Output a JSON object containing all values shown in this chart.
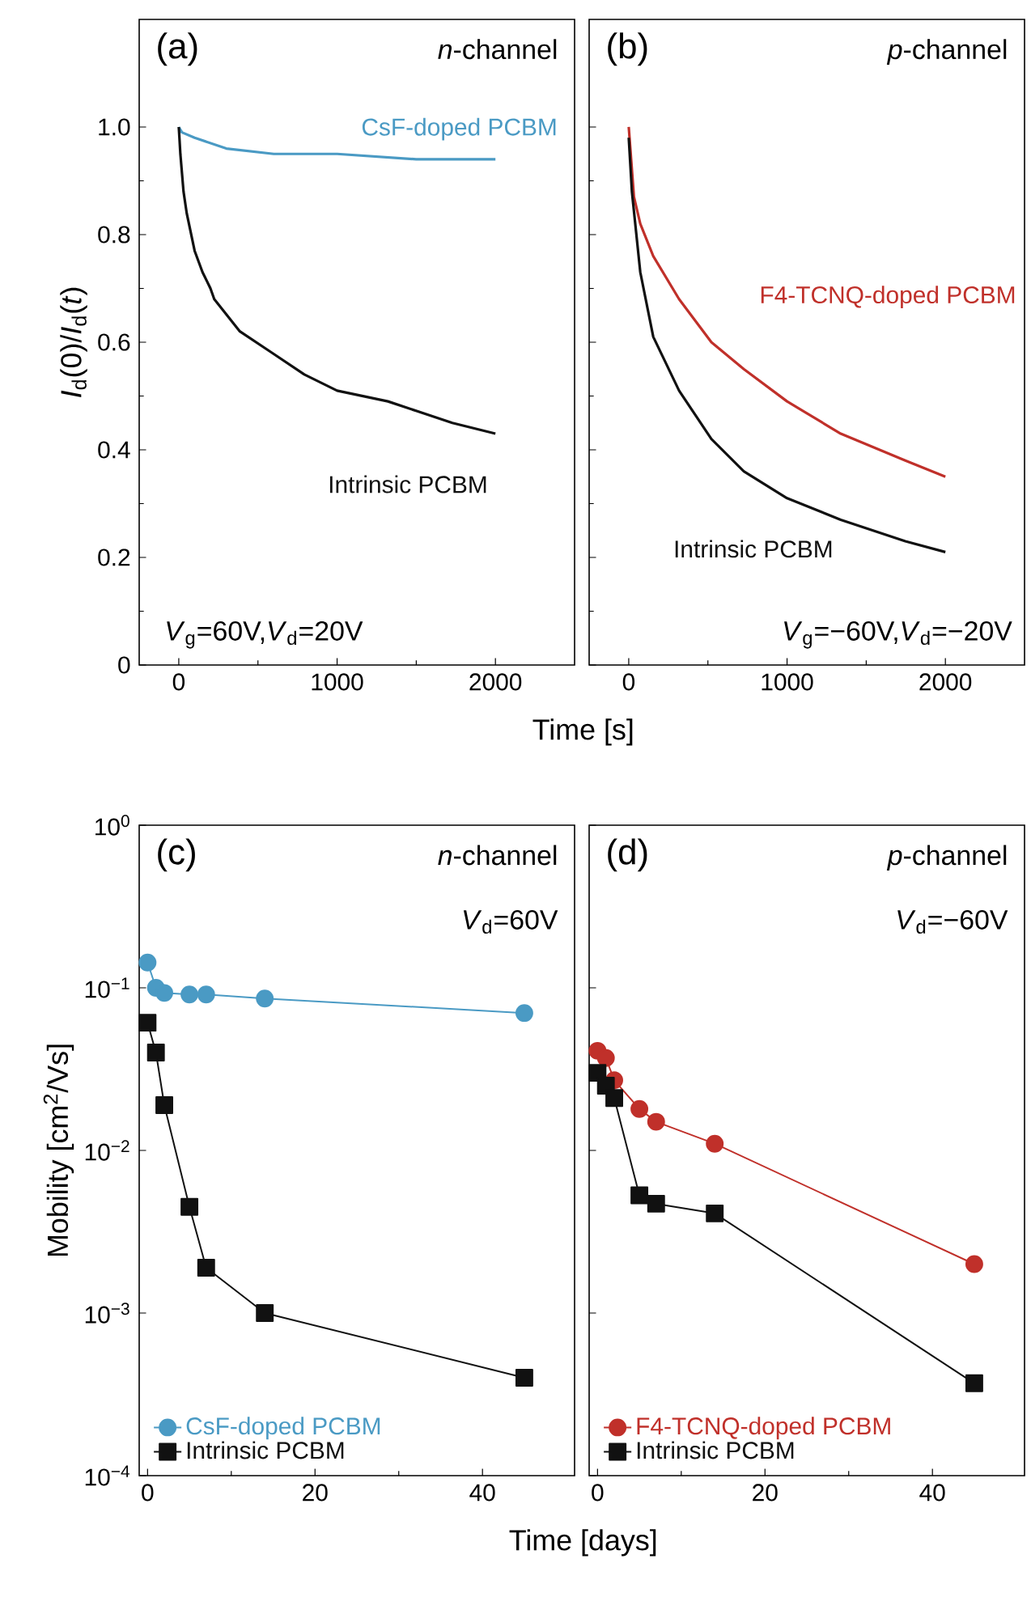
{
  "chart_data": [
    {
      "type": "line",
      "xlabel": "Time [s]",
      "ylabel": "*I*$_{d}$(0)/*I*$_{d}$(*t*)",
      "xlim": [
        -250,
        2500
      ],
      "ylim": [
        0,
        1.2
      ],
      "xticks": [
        0,
        1000,
        2000
      ],
      "yticks": [
        0,
        0.2,
        0.4,
        0.6,
        0.8,
        {
          "value": 1,
          "label": "1.0"
        }
      ],
      "annotations": [
        "(a)",
        "*n*-channel",
        "*V*$_{g}$=60V,*V*$_{d}$=20V"
      ],
      "series": [
        {
          "name": "CsF-doped PCBM",
          "color": "#4a9ac4",
          "x": [
            0,
            20,
            100,
            300,
            600,
            1000,
            1500,
            2000
          ],
          "values": [
            1.0,
            0.99,
            0.98,
            0.96,
            0.95,
            0.95,
            0.94,
            0.94
          ]
        },
        {
          "name": "Intrinsic PCBM",
          "color": "#111111",
          "x": [
            0,
            10,
            30,
            50,
            100,
            150,
            200,
            224,
            386,
            590,
            793,
            1000,
            1321,
            1728,
            2000
          ],
          "values": [
            1.0,
            0.95,
            0.88,
            0.84,
            0.77,
            0.73,
            0.7,
            0.68,
            0.62,
            0.58,
            0.54,
            0.51,
            0.49,
            0.45,
            0.43
          ]
        }
      ]
    },
    {
      "type": "line",
      "xlim": [
        -250,
        2500
      ],
      "ylim": [
        0,
        1.2
      ],
      "xticks": [
        0,
        1000,
        2000
      ],
      "yticks": [
        0,
        0.2,
        0.4,
        0.6,
        0.8,
        1
      ],
      "tick_labels": "x",
      "annotations": [
        "(b)",
        "*p*-channel",
        "*V*$_{g}$=−60V,*V*$_{d}$=−20V"
      ],
      "series": [
        {
          "name": "F4-TCNQ-doped PCBM",
          "color": "#c0302a",
          "x": [
            0,
            33,
            73,
            155,
            318,
            522,
            727,
            1000,
            1339,
            1747,
            2000
          ],
          "values": [
            1.0,
            0.87,
            0.82,
            0.76,
            0.68,
            0.6,
            0.55,
            0.49,
            0.43,
            0.38,
            0.35
          ]
        },
        {
          "name": "Intrinsic PCBM",
          "color": "#111111",
          "x": [
            0,
            20,
            73,
            155,
            318,
            522,
            727,
            1000,
            1339,
            1747,
            2000
          ],
          "values": [
            0.98,
            0.88,
            0.73,
            0.61,
            0.51,
            0.42,
            0.36,
            0.31,
            0.27,
            0.23,
            0.21
          ]
        }
      ]
    },
    {
      "type": "line",
      "log": "y",
      "xlabel": "Time [days]",
      "ylabel": "Mobility  [cm$^{2}$/Vs]",
      "xlim": [
        -1,
        51
      ],
      "ylim": [
        0.0001,
        1
      ],
      "xticks": [
        0,
        20,
        40
      ],
      "yticks": [
        {
          "value": 0.0001,
          "label": "10$^{−4}$"
        },
        {
          "value": 0.001,
          "label": "10$^{−3}$"
        },
        {
          "value": 0.01,
          "label": "10$^{−2}$"
        },
        {
          "value": 0.1,
          "label": "10$^{−1}$"
        },
        {
          "value": 1,
          "label": "10$^{0}$"
        }
      ],
      "legend": "bottom left",
      "line_style": "solid",
      "annotations": [
        "(c)",
        "*n*-channel",
        "*V*$_{d}$=60V"
      ],
      "series": [
        {
          "name": "CsF-doped PCBM",
          "color": "#4a9ac4",
          "marker": "circle",
          "x": [
            0,
            1,
            2,
            5,
            7,
            14,
            45
          ],
          "values": [
            0.143,
            0.1,
            0.093,
            0.091,
            0.091,
            0.086,
            0.07
          ]
        },
        {
          "name": "Intrinsic PCBM",
          "color": "#111111",
          "marker": "square",
          "x": [
            0,
            1,
            2,
            5,
            7,
            14,
            45
          ],
          "values": [
            0.061,
            0.04,
            0.019,
            0.0045,
            0.0019,
            0.001,
            0.0004
          ]
        }
      ]
    },
    {
      "type": "line",
      "log": "y",
      "xlim": [
        -1,
        51
      ],
      "ylim": [
        0.0001,
        1
      ],
      "xticks": [
        0,
        20,
        40
      ],
      "yticks": [
        0.0001,
        0.001,
        0.01,
        0.1,
        1
      ],
      "tick_labels": "x",
      "legend": "bottom left",
      "line_style": "solid",
      "annotations": [
        "(d)",
        "*p*-channel",
        "*V*$_{d}$=−60V"
      ],
      "series": [
        {
          "name": "F4-TCNQ-doped PCBM",
          "color": "#c0302a",
          "marker": "circle",
          "x": [
            0,
            1,
            2,
            5,
            7,
            14,
            45
          ],
          "values": [
            0.041,
            0.037,
            0.027,
            0.018,
            0.015,
            0.011,
            0.002
          ]
        },
        {
          "name": "Intrinsic PCBM",
          "color": "#111111",
          "marker": "square",
          "x": [
            0,
            1,
            2,
            5,
            7,
            14,
            45
          ],
          "values": [
            0.03,
            0.025,
            0.021,
            0.0053,
            0.0047,
            0.0041,
            0.00037
          ]
        }
      ]
    }
  ]
}
